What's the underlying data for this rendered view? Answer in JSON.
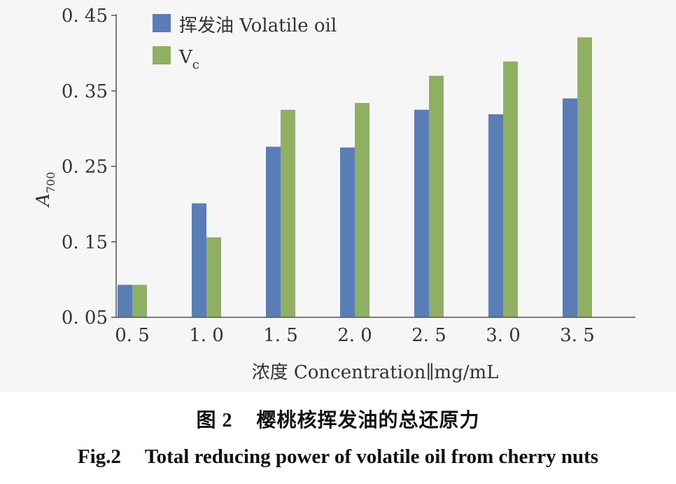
{
  "chart_data": {
    "type": "bar",
    "categories": [
      "0. 5",
      "1. 0",
      "1. 5",
      "2. 0",
      "2. 5",
      "3. 0",
      "3. 5"
    ],
    "series": [
      {
        "name": "挥发油 Volatile oil",
        "color": "#5b7db5",
        "values": [
          0.093,
          0.201,
          0.276,
          0.275,
          0.325,
          0.319,
          0.34
        ]
      },
      {
        "name": "Vc",
        "color": "#8fb063",
        "values": [
          0.093,
          0.156,
          0.325,
          0.334,
          0.37,
          0.389,
          0.421
        ]
      }
    ],
    "title": "",
    "xlabel": "浓度 Concentration∥mg/mL",
    "ylabel": "A700",
    "ylim": [
      0.05,
      0.45
    ],
    "yticks": [
      "0. 05",
      "0. 15",
      "0. 25",
      "0. 35",
      "0. 45"
    ],
    "ytick_values": [
      0.05,
      0.15,
      0.25,
      0.35,
      0.45
    ],
    "legend_position": "top-left",
    "grid": false
  },
  "legend": {
    "series1": "挥发油 Volatile oil",
    "series2_main": "V",
    "series2_sub": "c"
  },
  "axis": {
    "ylabel_main": "A",
    "ylabel_sub": "700",
    "xlabel": "浓度 Concentration∥mg/mL"
  },
  "caption": {
    "cn_num": "图 2",
    "cn_text": "樱桃核挥发油的总还原力",
    "en_num": "Fig.2",
    "en_text": "Total reducing power of volatile oil from cherry nuts"
  }
}
